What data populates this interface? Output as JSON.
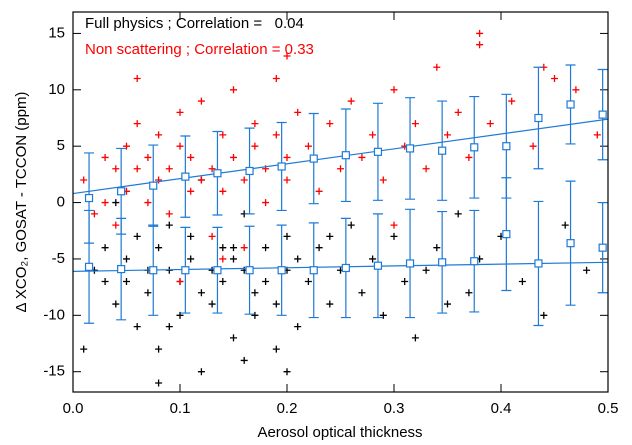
{
  "chart_data": {
    "type": "scatter",
    "xlabel": "Aerosol optical thickness",
    "ylabel": "Δ XCO₂, GOSAT - TCCON (ppm)",
    "xlim": [
      0,
      0.5
    ],
    "ylim": [
      -16.8,
      16.9
    ],
    "xticks": [
      {
        "value": 0,
        "label": "0.0"
      },
      0.1,
      0.2,
      0.3,
      0.4,
      0.5
    ],
    "yticks": [
      -15,
      -10,
      -5,
      0,
      5,
      10,
      15
    ],
    "stats_color": "#1e7ad6",
    "bin_x": [
      0.015,
      0.045,
      0.075,
      0.105,
      0.135,
      0.165,
      0.195,
      0.225,
      0.255,
      0.285,
      0.315,
      0.345,
      0.375,
      0.405,
      0.435,
      0.465,
      0.495
    ],
    "series": [
      {
        "name": "Full physics ; Correlation =   0.04",
        "color": "#000000",
        "x": [
          0.02,
          0.03,
          0.04,
          0.05,
          0.05,
          0.06,
          0.06,
          0.07,
          0.07,
          0.08,
          0.08,
          0.09,
          0.09,
          0.1,
          0.1,
          0.11,
          0.11,
          0.12,
          0.12,
          0.13,
          0.13,
          0.14,
          0.14,
          0.15,
          0.15,
          0.16,
          0.16,
          0.17,
          0.17,
          0.18,
          0.18,
          0.19,
          0.19,
          0.2,
          0.2,
          0.21,
          0.21,
          0.22,
          0.23,
          0.24,
          0.25,
          0.26,
          0.27,
          0.28,
          0.29,
          0.3,
          0.31,
          0.32,
          0.33,
          0.34,
          0.35,
          0.36,
          0.37,
          0.38,
          0.4,
          0.42,
          0.44,
          0.46,
          0.48,
          0.01,
          0.04,
          0.08,
          0.12,
          0.16,
          0.2,
          0.24,
          0.03,
          0.09,
          0.15
        ],
        "y": [
          -6,
          -4,
          -9,
          -5,
          -7,
          -3,
          -11,
          -6,
          -8,
          -4,
          -13,
          -6,
          -2,
          -7,
          -10,
          -5,
          -3,
          -8,
          -15,
          -6,
          -9,
          -4,
          -7,
          -12,
          -5,
          -6,
          -1,
          -8,
          -10,
          -4,
          -7,
          -9,
          -13,
          -6,
          -3,
          -5,
          -11,
          -7,
          -4,
          -9,
          -6,
          -2,
          -8,
          -5,
          -10,
          -3,
          -7,
          -12,
          -6,
          -4,
          -9,
          -1,
          -8,
          -5,
          -3,
          -7,
          -10,
          -2,
          -6,
          -13,
          0,
          -16,
          2,
          -14,
          -15,
          -3,
          -7,
          -11,
          -4
        ],
        "bin_means": [
          -5.7,
          -5.9,
          -6.0,
          -6.0,
          -6.0,
          -6.0,
          -6.0,
          -6.0,
          -5.8,
          -5.6,
          -5.4,
          -5.3,
          -5.2,
          -2.8,
          -5.4,
          -3.6,
          -4.0
        ],
        "bin_errors": [
          5.0,
          4.5,
          4.0,
          3.8,
          3.8,
          3.9,
          4.0,
          4.2,
          4.4,
          4.6,
          4.8,
          4.5,
          4.5,
          5.0,
          5.5,
          5.5,
          4.0
        ],
        "fit": {
          "x": [
            0,
            0.5
          ],
          "y": [
            -6.1,
            -5.3
          ]
        }
      },
      {
        "name": "Non scattering ; Correlation = 0.33",
        "color": "#ff0000",
        "x": [
          0.01,
          0.02,
          0.03,
          0.03,
          0.04,
          0.04,
          0.05,
          0.05,
          0.06,
          0.06,
          0.07,
          0.07,
          0.08,
          0.08,
          0.09,
          0.09,
          0.1,
          0.1,
          0.11,
          0.11,
          0.12,
          0.12,
          0.13,
          0.13,
          0.14,
          0.14,
          0.15,
          0.15,
          0.16,
          0.16,
          0.17,
          0.17,
          0.18,
          0.18,
          0.19,
          0.19,
          0.2,
          0.2,
          0.21,
          0.22,
          0.23,
          0.24,
          0.25,
          0.26,
          0.27,
          0.28,
          0.29,
          0.3,
          0.31,
          0.32,
          0.33,
          0.34,
          0.35,
          0.36,
          0.37,
          0.38,
          0.39,
          0.41,
          0.43,
          0.45,
          0.47,
          0.49,
          0.1,
          0.14,
          0.06,
          0.2,
          0.3,
          0.38,
          0.44
        ],
        "y": [
          2,
          -1,
          4,
          0,
          3,
          -2,
          5,
          1,
          3,
          7,
          0,
          4,
          2,
          6,
          -1,
          3,
          5,
          8,
          1,
          4,
          2,
          9,
          3,
          -3,
          6,
          1,
          4,
          10,
          2,
          -4,
          5,
          7,
          3,
          0,
          6,
          11,
          2,
          4,
          8,
          5,
          1,
          7,
          3,
          9,
          4,
          6,
          2,
          10,
          5,
          7,
          3,
          12,
          6,
          8,
          4,
          15,
          7,
          9,
          5,
          11,
          10,
          6,
          -7,
          -5,
          11,
          13,
          -2,
          14,
          12
        ],
        "bin_means": [
          0.4,
          1.0,
          1.5,
          2.3,
          2.6,
          2.8,
          3.2,
          3.9,
          4.2,
          4.5,
          4.8,
          4.6,
          4.9,
          5.0,
          7.5,
          8.7,
          7.8
        ],
        "bin_errors": [
          4.0,
          3.8,
          3.6,
          3.6,
          3.7,
          3.8,
          3.9,
          4.0,
          4.1,
          4.3,
          4.5,
          4.4,
          4.5,
          4.6,
          4.5,
          3.5,
          4.0
        ],
        "fit": {
          "x": [
            0,
            0.5
          ],
          "y": [
            0.8,
            7.4
          ]
        }
      }
    ]
  }
}
